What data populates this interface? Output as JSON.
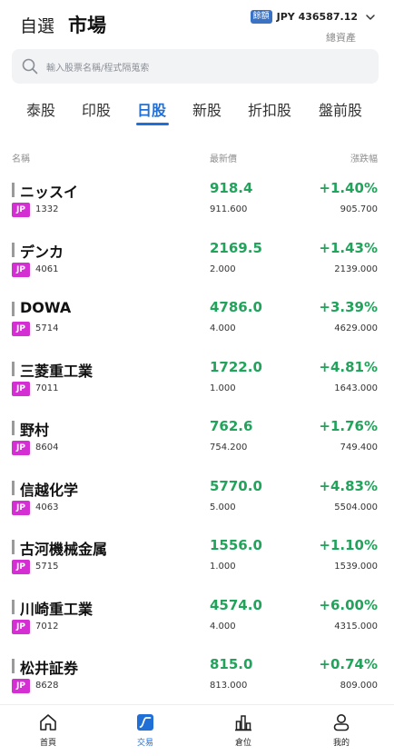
{
  "header": {
    "tabs": [
      "自選",
      "市場"
    ],
    "account_badge": "餘額",
    "account_value": "JPY 436587.12",
    "account_label": "總資產"
  },
  "search": {
    "placeholder": "輸入股票名稱/程式隔蒐索"
  },
  "market_tabs": [
    "泰股",
    "印股",
    "日股",
    "新股",
    "折扣股",
    "盤前股"
  ],
  "active_market_tab": "日股",
  "columns": {
    "name": "名稱",
    "price": "最新價",
    "change": "漲跌幅"
  },
  "stocks": [
    {
      "name": "ニッスイ",
      "market": "JP",
      "code": "1332",
      "price": "918.4",
      "price_sub": "911.600",
      "change": "+1.40%",
      "change_sub": "905.700"
    },
    {
      "name": "デンカ",
      "market": "JP",
      "code": "4061",
      "price": "2169.5",
      "price_sub": "2.000",
      "change": "+1.43%",
      "change_sub": "2139.000"
    },
    {
      "name": "DOWA",
      "market": "JP",
      "code": "5714",
      "price": "4786.0",
      "price_sub": "4.000",
      "change": "+3.39%",
      "change_sub": "4629.000"
    },
    {
      "name": "三菱重工業",
      "market": "JP",
      "code": "7011",
      "price": "1722.0",
      "price_sub": "1.000",
      "change": "+4.81%",
      "change_sub": "1643.000"
    },
    {
      "name": "野村",
      "market": "JP",
      "code": "8604",
      "price": "762.6",
      "price_sub": "754.200",
      "change": "+1.76%",
      "change_sub": "749.400"
    },
    {
      "name": "信越化学",
      "market": "JP",
      "code": "4063",
      "price": "5770.0",
      "price_sub": "5.000",
      "change": "+4.83%",
      "change_sub": "5504.000"
    },
    {
      "name": "古河機械金属",
      "market": "JP",
      "code": "5715",
      "price": "1556.0",
      "price_sub": "1.000",
      "change": "+1.10%",
      "change_sub": "1539.000"
    },
    {
      "name": "川崎重工業",
      "market": "JP",
      "code": "7012",
      "price": "4574.0",
      "price_sub": "4.000",
      "change": "+6.00%",
      "change_sub": "4315.000"
    },
    {
      "name": "松井証券",
      "market": "JP",
      "code": "8628",
      "price": "815.0",
      "price_sub": "813.000",
      "change": "+0.74%",
      "change_sub": "809.000"
    }
  ],
  "bottom_nav": [
    {
      "label": "首頁",
      "icon": "home-icon"
    },
    {
      "label": "交易",
      "icon": "trade-icon"
    },
    {
      "label": "倉位",
      "icon": "position-icon"
    },
    {
      "label": "我的",
      "icon": "profile-icon"
    }
  ],
  "active_nav": "交易",
  "colors": {
    "accent": "#1f6fd6",
    "up": "#21a35b",
    "market_badge": "#d42fd3",
    "account_badge": "#3a72c4"
  }
}
